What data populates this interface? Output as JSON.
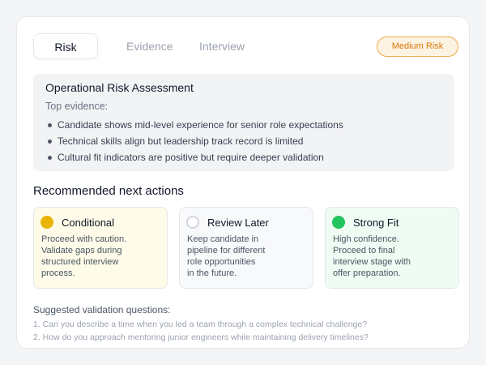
{
  "tabs": [
    {
      "label": "Risk",
      "active": true
    },
    {
      "label": "Evidence"
    },
    {
      "label": "Interview"
    }
  ],
  "badge": {
    "label": "Medium Risk",
    "color": "#d97706"
  },
  "assessment": {
    "title": "Operational Risk Assessment",
    "subtitle": "Top evidence:",
    "items": [
      "Candidate shows mid-level experience for senior role expectations",
      "Technical skills align but leadership track record is limited",
      "Cultural fit indicators are positive but require deeper validation"
    ]
  },
  "actions": {
    "heading": "Recommended next actions",
    "options": [
      {
        "title": "Conditional",
        "icon": "filled-circle",
        "color": "#eab308",
        "lines": [
          "Proceed with caution.",
          "Validate gaps during",
          "structured interview",
          "process."
        ]
      },
      {
        "title": "Review Later",
        "icon": "empty-circle",
        "color": "#d1d5db",
        "lines": [
          "Keep candidate in",
          "pipeline for different",
          "role opportunities",
          "in the future."
        ]
      },
      {
        "title": "Strong Fit",
        "icon": "filled-circle",
        "color": "#22c55e",
        "lines": [
          "High confidence.",
          "Proceed to final",
          "interview stage with",
          "offer preparation."
        ]
      }
    ]
  },
  "questions": {
    "heading": "Suggested validation questions:",
    "items": [
      "1. Can you describe a time when you led a team through a complex technical challenge?",
      "2. How do you approach mentoring junior engineers while maintaining delivery timelines?"
    ]
  }
}
